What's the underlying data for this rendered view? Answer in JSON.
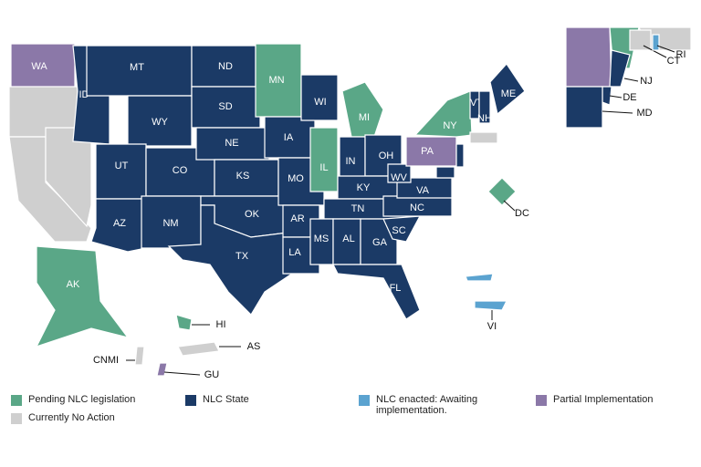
{
  "legend": [
    {
      "label": "Pending NLC legislation",
      "color": "#5aa787"
    },
    {
      "label": "NLC State",
      "color": "#1b3a66"
    },
    {
      "label": "NLC enacted: Awaiting implementation.",
      "color": "#5ba3d0"
    },
    {
      "label": "Partial Implementation",
      "color": "#8b78a8"
    },
    {
      "label": "Currently No Action",
      "color": "#cfcfcf"
    }
  ],
  "regions": [
    {
      "label": "WA",
      "status": 3
    },
    {
      "label": null,
      "status": 4
    },
    {
      "label": null,
      "status": 4
    },
    {
      "label": null,
      "status": 4
    },
    {
      "label": "ID",
      "status": 1
    },
    {
      "label": "MT",
      "status": 1
    },
    {
      "label": "WY",
      "status": 1
    },
    {
      "label": "UT",
      "status": 1
    },
    {
      "label": "CO",
      "status": 1
    },
    {
      "label": "AZ",
      "status": 1
    },
    {
      "label": "NM",
      "status": 1
    },
    {
      "label": "ND",
      "status": 1
    },
    {
      "label": "SD",
      "status": 1
    },
    {
      "label": "NE",
      "status": 1
    },
    {
      "label": "KS",
      "status": 1
    },
    {
      "label": "OK",
      "status": 1
    },
    {
      "label": "TX",
      "status": 1
    },
    {
      "label": "MN",
      "status": 0
    },
    {
      "label": "IA",
      "status": 1
    },
    {
      "label": "MO",
      "status": 1
    },
    {
      "label": "AR",
      "status": 1
    },
    {
      "label": "LA",
      "status": 1
    },
    {
      "label": "WI",
      "status": 1
    },
    {
      "label": "IL",
      "status": 0
    },
    {
      "label": "MI",
      "status": 0
    },
    {
      "label": "IN",
      "status": 1
    },
    {
      "label": "OH",
      "status": 1
    },
    {
      "label": "KY",
      "status": 1
    },
    {
      "label": "TN",
      "status": 1
    },
    {
      "label": "MS",
      "status": 1
    },
    {
      "label": "AL",
      "status": 1
    },
    {
      "label": "GA",
      "status": 1
    },
    {
      "label": "FL",
      "status": 1
    },
    {
      "label": "SC",
      "status": 1
    },
    {
      "label": "NC",
      "status": 1
    },
    {
      "label": "VA",
      "status": 1
    },
    {
      "label": "WV",
      "status": 1
    },
    {
      "label": "PA",
      "status": 3
    },
    {
      "label": "NY",
      "status": 0
    },
    {
      "label": "VT",
      "status": 1
    },
    {
      "label": "NH",
      "status": 1
    },
    {
      "label": "ME",
      "status": 1
    },
    {
      "label": null,
      "status": 4
    },
    {
      "label": null,
      "status": 1
    },
    {
      "label": null,
      "status": 1
    },
    {
      "label": "AK",
      "status": 0
    },
    {
      "label": "HI",
      "status": 0
    },
    {
      "label": "DC",
      "status": 0
    },
    {
      "label": "VI",
      "status": 2
    },
    {
      "label": null,
      "status": 2
    },
    {
      "label": "CNMI",
      "status": 4
    },
    {
      "label": "AS",
      "status": 4
    },
    {
      "label": "GU",
      "status": 3
    },
    {
      "label": null,
      "status": 3
    },
    {
      "label": null,
      "status": 0
    },
    {
      "label": null,
      "status": 4
    },
    {
      "label": "CT",
      "status": 4
    },
    {
      "label": "RI",
      "status": 2
    },
    {
      "label": "NJ",
      "status": 1
    },
    {
      "label": "DE",
      "status": 1
    },
    {
      "label": "MD",
      "status": 1
    }
  ]
}
